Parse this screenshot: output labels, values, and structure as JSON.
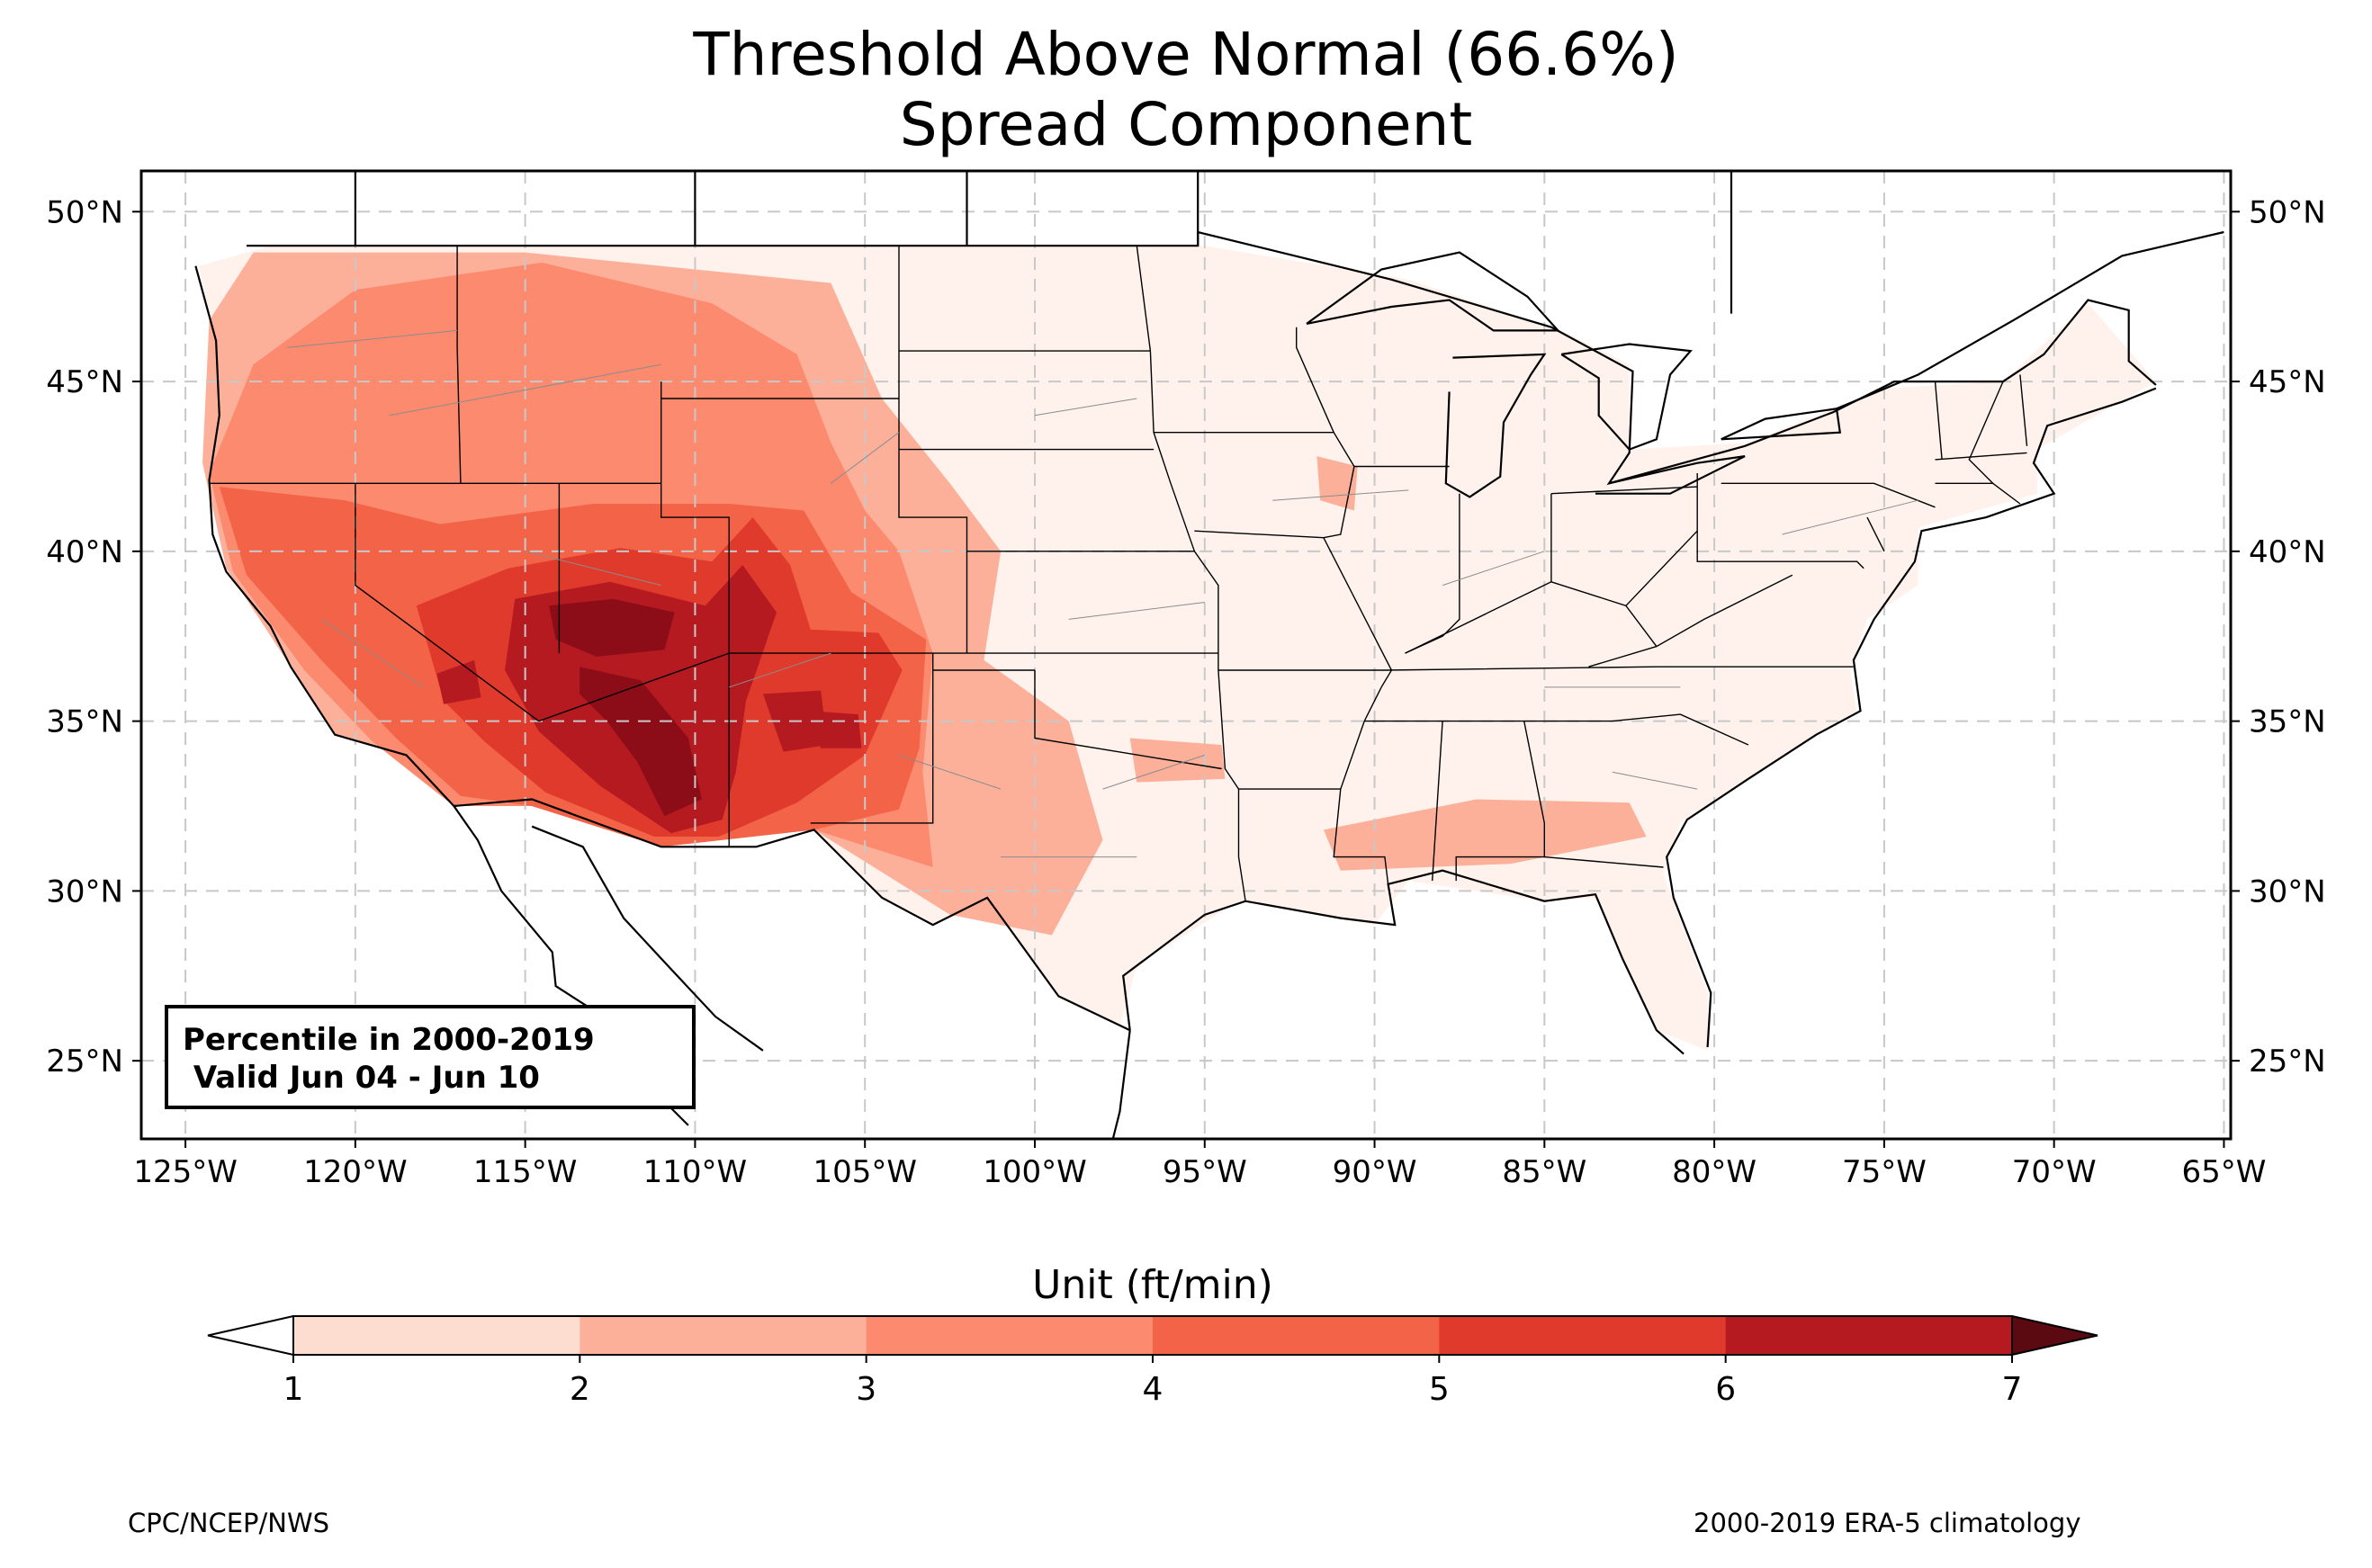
{
  "title": [
    "Threshold Above Normal (66.6%)",
    "Spread Component"
  ],
  "info_box": [
    "Percentile in 2000-2019",
    " Valid Jun 04 - Jun 10"
  ],
  "footer": {
    "left": "CPC/NCEP/NWS",
    "right": "2000-2019 ERA-5 climatology"
  },
  "map": {
    "extent": {
      "lon": [
        -126.3,
        -64.8
      ],
      "lat": [
        22.7,
        51.2
      ]
    },
    "lat_ticks": [
      25,
      30,
      35,
      40,
      45,
      50
    ],
    "lat_tick_labels": [
      "25°N",
      "30°N",
      "35°N",
      "40°N",
      "45°N",
      "50°N"
    ],
    "lon_ticks": [
      -125,
      -120,
      -115,
      -110,
      -105,
      -100,
      -95,
      -90,
      -85,
      -80,
      -75,
      -70,
      -65
    ],
    "lon_tick_labels": [
      "125°W",
      "120°W",
      "115°W",
      "110°W",
      "105°W",
      "100°W",
      "95°W",
      "90°W",
      "85°W",
      "80°W",
      "75°W",
      "70°W",
      "65°W"
    ],
    "grid": true,
    "field": "percentile spread component, shaded by level",
    "regions": [
      {
        "level": 1,
        "points": [
          [
            -122.5,
            49
          ],
          [
            -95,
            49
          ],
          [
            -89,
            48
          ],
          [
            -84.5,
            46.5
          ],
          [
            -82.5,
            45.5
          ],
          [
            -82.5,
            43
          ],
          [
            -79,
            43.2
          ],
          [
            -75,
            44.8
          ],
          [
            -71.5,
            45
          ],
          [
            -69,
            47.3
          ],
          [
            -67,
            45
          ],
          [
            -70.5,
            43
          ],
          [
            -70.5,
            41.7
          ],
          [
            -74,
            40.7
          ],
          [
            -74,
            39
          ],
          [
            -75.5,
            38
          ],
          [
            -76,
            36.5
          ],
          [
            -75.8,
            35.2
          ],
          [
            -77,
            34.6
          ],
          [
            -79,
            33.3
          ],
          [
            -81,
            32
          ],
          [
            -81.5,
            30.5
          ],
          [
            -80.2,
            27
          ],
          [
            -80.2,
            25.3
          ],
          [
            -81.7,
            25.9
          ],
          [
            -82.7,
            28
          ],
          [
            -83.5,
            29.8
          ],
          [
            -85,
            29.7
          ],
          [
            -89,
            30.3
          ],
          [
            -90,
            29
          ],
          [
            -94,
            29.7
          ],
          [
            -97,
            27.8
          ],
          [
            -97.5,
            26
          ],
          [
            -99.3,
            26.9
          ],
          [
            -101.4,
            29.8
          ],
          [
            -103,
            29
          ],
          [
            -104.5,
            29.8
          ],
          [
            -106.5,
            31.8
          ],
          [
            -111,
            31.3
          ],
          [
            -114.8,
            32.5
          ],
          [
            -117.1,
            32.5
          ],
          [
            -118.5,
            34
          ],
          [
            -120.6,
            34.6
          ],
          [
            -121.9,
            36.6
          ],
          [
            -123.8,
            39.5
          ],
          [
            -124.2,
            42
          ],
          [
            -124.1,
            46
          ],
          [
            -124.6,
            48.4
          ],
          [
            -122.5,
            49
          ]
        ]
      },
      {
        "level": 2,
        "points": [
          [
            -124.5,
            42.6
          ],
          [
            -124.3,
            46.8
          ],
          [
            -123,
            48.8
          ],
          [
            -115,
            48.8
          ],
          [
            -110,
            48.3
          ],
          [
            -106,
            47.9
          ],
          [
            -104.5,
            44.5
          ],
          [
            -102.5,
            42
          ],
          [
            -101,
            40
          ],
          [
            -101.5,
            36.8
          ],
          [
            -99,
            35
          ],
          [
            -98,
            31.5
          ],
          [
            -99.5,
            28.7
          ],
          [
            -102.5,
            29.3
          ],
          [
            -106.5,
            31.8
          ],
          [
            -111,
            31.3
          ],
          [
            -114.8,
            32.5
          ],
          [
            -117.1,
            32.5
          ],
          [
            -118.5,
            34
          ],
          [
            -120.6,
            34.6
          ],
          [
            -121.9,
            36.6
          ],
          [
            -123.8,
            39.5
          ],
          [
            -124.5,
            42.6
          ]
        ]
      },
      {
        "level": 2,
        "points": [
          [
            -91.5,
            31.8
          ],
          [
            -87,
            32.7
          ],
          [
            -82.5,
            32.6
          ],
          [
            -82,
            31.6
          ],
          [
            -86,
            30.8
          ],
          [
            -91,
            30.6
          ]
        ]
      },
      {
        "level": 2,
        "points": [
          [
            -97.2,
            34.5
          ],
          [
            -94.5,
            34.3
          ],
          [
            -94.4,
            33.3
          ],
          [
            -97,
            33.2
          ]
        ]
      },
      {
        "level": 2,
        "points": [
          [
            -91.7,
            42.8
          ],
          [
            -90.5,
            42.5
          ],
          [
            -90.6,
            41.2
          ],
          [
            -91.6,
            41.5
          ]
        ]
      },
      {
        "level": 3,
        "points": [
          [
            -124.3,
            42.3
          ],
          [
            -123,
            45.5
          ],
          [
            -120,
            47.7
          ],
          [
            -114.5,
            48.5
          ],
          [
            -109.5,
            47.3
          ],
          [
            -107,
            45.8
          ],
          [
            -106,
            43.2
          ],
          [
            -105,
            41.2
          ],
          [
            -104,
            40
          ],
          [
            -103,
            37
          ],
          [
            -103.3,
            33.5
          ],
          [
            -103,
            30.7
          ],
          [
            -106.5,
            31.8
          ],
          [
            -111,
            31.3
          ],
          [
            -114.8,
            32.5
          ],
          [
            -117.1,
            32.5
          ],
          [
            -119.5,
            34.4
          ],
          [
            -121.5,
            36.5
          ],
          [
            -123.6,
            39.4
          ],
          [
            -124.3,
            42.3
          ]
        ]
      },
      {
        "level": 4,
        "points": [
          [
            -124,
            41.9
          ],
          [
            -120.3,
            41.5
          ],
          [
            -117.5,
            40.8
          ],
          [
            -113,
            41.4
          ],
          [
            -109,
            41.4
          ],
          [
            -106.8,
            41.2
          ],
          [
            -105.4,
            38.8
          ],
          [
            -103.2,
            37.4
          ],
          [
            -103.4,
            34.2
          ],
          [
            -104,
            32.4
          ],
          [
            -106.5,
            31.8
          ],
          [
            -111,
            31.3
          ],
          [
            -114.8,
            32.5
          ],
          [
            -116.9,
            32.8
          ],
          [
            -118.8,
            34.5
          ],
          [
            -121,
            36.8
          ],
          [
            -123.2,
            39.3
          ],
          [
            -124,
            41.9
          ]
        ]
      },
      {
        "level": 5,
        "points": [
          [
            -118.2,
            38.4
          ],
          [
            -115.5,
            39.5
          ],
          [
            -112.2,
            40.1
          ],
          [
            -109.5,
            39.7
          ],
          [
            -108.3,
            41
          ],
          [
            -107.2,
            39.6
          ],
          [
            -106.6,
            37.7
          ],
          [
            -104.6,
            37.6
          ],
          [
            -103.9,
            36.5
          ],
          [
            -105,
            34
          ],
          [
            -107,
            32.6
          ],
          [
            -109.3,
            31.6
          ],
          [
            -111.2,
            31.6
          ],
          [
            -114.4,
            32.9
          ],
          [
            -116.2,
            34.4
          ],
          [
            -117.4,
            35.6
          ]
        ]
      },
      {
        "level": 6,
        "points": [
          [
            -117.6,
            36.4
          ],
          [
            -116.5,
            36.8
          ],
          [
            -116.3,
            35.7
          ],
          [
            -117.4,
            35.5
          ]
        ]
      },
      {
        "level": 6,
        "points": [
          [
            -115.3,
            38.6
          ],
          [
            -112.5,
            39.1
          ],
          [
            -109.7,
            38.4
          ],
          [
            -108.6,
            39.6
          ],
          [
            -107.6,
            38.2
          ],
          [
            -108.5,
            35.6
          ],
          [
            -108.8,
            33.5
          ],
          [
            -109.2,
            32.1
          ],
          [
            -110.7,
            31.7
          ],
          [
            -112.8,
            33.1
          ],
          [
            -114.6,
            34.7
          ],
          [
            -115.6,
            36.5
          ]
        ]
      },
      {
        "level": 6,
        "points": [
          [
            -108,
            35.8
          ],
          [
            -106.3,
            35.9
          ],
          [
            -106.1,
            34.3
          ],
          [
            -107.4,
            34.1
          ]
        ]
      },
      {
        "level": 6,
        "points": [
          [
            -106.6,
            35.3
          ],
          [
            -105.2,
            35.2
          ],
          [
            -105.1,
            34.2
          ],
          [
            -106.3,
            34.2
          ]
        ]
      },
      {
        "level": 7,
        "points": [
          [
            -114.3,
            38.4
          ],
          [
            -112.4,
            38.6
          ],
          [
            -110.6,
            38.2
          ],
          [
            -110.9,
            37.1
          ],
          [
            -112.9,
            36.9
          ],
          [
            -114.1,
            37.4
          ]
        ]
      },
      {
        "level": 7,
        "points": [
          [
            -113.4,
            36.6
          ],
          [
            -111.6,
            36.2
          ],
          [
            -110.2,
            34.5
          ],
          [
            -109.8,
            32.7
          ],
          [
            -110.9,
            32.2
          ],
          [
            -111.7,
            33.8
          ],
          [
            -112.6,
            35
          ],
          [
            -113.4,
            35.8
          ]
        ]
      }
    ]
  },
  "colorbar": {
    "title": "Unit (ft/min)",
    "ticks": [
      1,
      2,
      3,
      4,
      5,
      6,
      7
    ],
    "tick_labels": [
      "1",
      "2",
      "3",
      "4",
      "5",
      "6",
      "7"
    ],
    "extend": "both",
    "under_color": "#ffffff",
    "over_color": "#5a0a10",
    "colors": [
      "#fdddd0",
      "#fcb09a",
      "#fb8a6e",
      "#f36347",
      "#df3a2c",
      "#b51a20",
      "#8c0d17"
    ]
  },
  "colors": {
    "level_1": "#fff2ec",
    "gridline": "#c8c8c8",
    "border": "#000000",
    "minor_border": "#8c8c8c"
  }
}
